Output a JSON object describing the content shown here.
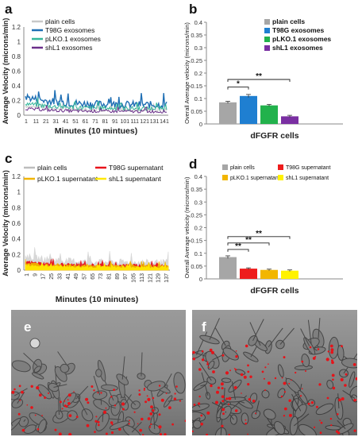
{
  "panels": {
    "a": "a",
    "b": "b",
    "c": "c",
    "d": "d",
    "e": "e",
    "f": "f"
  },
  "chart_data": [
    {
      "id": "a",
      "type": "line",
      "ylabel": "Average Velocity  (microns/min)",
      "xlabel": "Minutes (10 mintues)",
      "ylim": [
        0,
        1.2
      ],
      "yticks": [
        "0",
        "0.2",
        "0.4",
        "0.6",
        "0.8",
        "1",
        "1.2"
      ],
      "xticks": [
        "1",
        "11",
        "21",
        "31",
        "41",
        "51",
        "61",
        "71",
        "81",
        "91",
        "101",
        "111",
        "121",
        "131",
        "141"
      ],
      "legend_position": "top-left",
      "series": [
        {
          "name": "plain cells",
          "color": "#c8c8c8",
          "base": 0.07,
          "noise": 0.025
        },
        {
          "name": "T98G exosomes",
          "color": "#1f6fb4",
          "base": 0.14,
          "noise": 0.05
        },
        {
          "name": "pLKO.1 exosomes",
          "color": "#34b79a",
          "base": 0.09,
          "noise": 0.03
        },
        {
          "name": "shL1 exosomes",
          "color": "#6b2f8a",
          "base": 0.05,
          "noise": 0.02
        }
      ]
    },
    {
      "id": "b",
      "type": "bar",
      "ylabel": "Overall Average velocity (microns/min)",
      "xlabel": "dFGFR cells",
      "ylim": [
        0,
        0.4
      ],
      "yticks": [
        "0",
        "0.05",
        "0.1",
        "0.15",
        "0.2",
        "0.25",
        "0.3",
        "0.35",
        "0.4"
      ],
      "legend_position": "top-right",
      "series": [
        {
          "name": "plain cells",
          "value": 0.085,
          "error": 0.004,
          "color": "#a6a6a6"
        },
        {
          "name": "T98G exosomes",
          "value": 0.11,
          "error": 0.006,
          "color": "#1f7fd1"
        },
        {
          "name": "pLKO.1 exosomes",
          "value": 0.073,
          "error": 0.004,
          "color": "#22b24c"
        },
        {
          "name": "shL1 exosomes",
          "value": 0.03,
          "error": 0.004,
          "color": "#7a2fa2"
        }
      ],
      "significance": [
        {
          "from": 0,
          "to": 1,
          "label": "*",
          "y": 0.145
        },
        {
          "from": 0,
          "to": 3,
          "label": "**",
          "y": 0.175
        }
      ]
    },
    {
      "id": "c",
      "type": "area",
      "ylabel": "Average Velocity  (microns/min)",
      "xlabel": "Minutes (10 minutes)",
      "ylim": [
        0,
        1.2
      ],
      "yticks": [
        "0",
        "0.2",
        "0.4",
        "0.6",
        "0.8",
        "1",
        "1.2"
      ],
      "xticks": [
        "1",
        "9",
        "17",
        "25",
        "33",
        "41",
        "49",
        "57",
        "65",
        "73",
        "81",
        "89",
        "97",
        "105",
        "113",
        "121",
        "129",
        "137"
      ],
      "legend_position": "top",
      "series": [
        {
          "name": "plain cells",
          "color": "#bdbdbd",
          "base": 0.1,
          "noise": 0.04
        },
        {
          "name": "T98G supernatant",
          "color": "#e8131b",
          "base": 0.06,
          "noise": 0.02
        },
        {
          "name": "pLKO.1 supernatant",
          "color": "#f0b400",
          "base": 0.05,
          "noise": 0.02
        },
        {
          "name": "shL1 supernatant",
          "color": "#ffe800",
          "base": 0.035,
          "noise": 0.015
        }
      ]
    },
    {
      "id": "d",
      "type": "bar",
      "ylabel": "Overall Average velocity (microns/min)",
      "xlabel": "dFGFR cells",
      "ylim": [
        0,
        0.4
      ],
      "yticks": [
        "0",
        "0.05",
        "0.1",
        "0.15",
        "0.2",
        "0.25",
        "0.3",
        "0.35",
        "0.4"
      ],
      "legend_position": "top",
      "series": [
        {
          "name": "plain cells",
          "value": 0.085,
          "error": 0.005,
          "color": "#a6a6a6"
        },
        {
          "name": "T98G supernatant",
          "value": 0.04,
          "error": 0.003,
          "color": "#ee1c1c"
        },
        {
          "name": "pLKO.1 supernatant",
          "value": 0.035,
          "error": 0.003,
          "color": "#f2b600"
        },
        {
          "name": "shL1 supernatant",
          "value": 0.032,
          "error": 0.003,
          "color": "#fff200"
        }
      ],
      "significance": [
        {
          "from": 0,
          "to": 1,
          "label": "**",
          "y": 0.115
        },
        {
          "from": 0,
          "to": 2,
          "label": "**",
          "y": 0.14
        },
        {
          "from": 0,
          "to": 3,
          "label": "**",
          "y": 0.165
        }
      ]
    }
  ]
}
